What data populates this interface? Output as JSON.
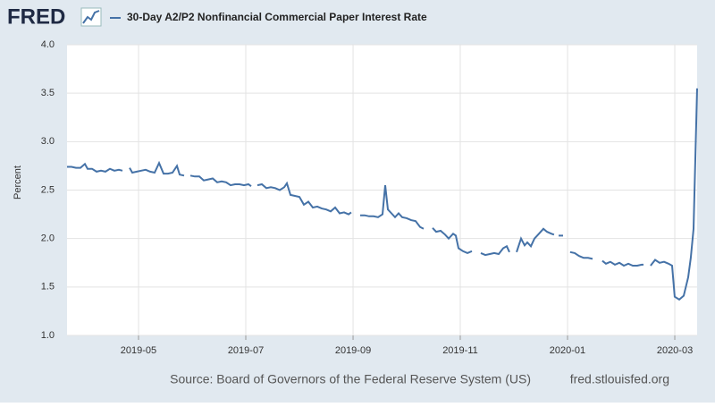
{
  "chart_data": {
    "type": "line",
    "logo": "FRED",
    "source": "Source: Board of Governors of the Federal Reserve System (US)",
    "site": "fred.stlouisfed.org",
    "ylabel": "Percent",
    "xlim": [
      2019.2222,
      2020.2014
    ],
    "xticks": [
      {
        "value": 2019.3333,
        "label": "2019-05"
      },
      {
        "value": 2019.5,
        "label": "2019-07"
      },
      {
        "value": 2019.6667,
        "label": "2019-09"
      },
      {
        "value": 2019.8333,
        "label": "2019-11"
      },
      {
        "value": 2020,
        "label": "2020-01"
      },
      {
        "value": 2020.1667,
        "label": "2020-03"
      }
    ],
    "ylim": [
      1,
      4
    ],
    "yticks": [
      {
        "value": 1,
        "label": "1.0"
      },
      1.5,
      {
        "value": 2,
        "label": "2.0"
      },
      2.5,
      {
        "value": 3,
        "label": "3.0"
      },
      3.5,
      {
        "value": 4,
        "label": "4.0"
      }
    ],
    "grid": true,
    "x": [
      2019.2222,
      2019.2291,
      2019.2361,
      2019.243,
      2019.25,
      2019.2541,
      2019.2611,
      2019.268,
      2019.275,
      2019.2819,
      2019.2889,
      2019.2958,
      2019.3028,
      2019.3083,
      null,
      2019.3194,
      2019.3236,
      2019.3305,
      2019.3375,
      2019.3444,
      2019.3514,
      2019.3583,
      2019.3653,
      2019.3722,
      2019.3792,
      2019.3861,
      2019.393,
      2019.3972,
      2019.4042,
      null,
      2019.4139,
      2019.4208,
      2019.4278,
      2019.4347,
      2019.4417,
      2019.4486,
      2019.4555,
      2019.4625,
      2019.4694,
      2019.4764,
      2019.4833,
      2019.4903,
      2019.4972,
      2019.5042,
      2019.5083,
      null,
      2019.518,
      2019.525,
      2019.5319,
      2019.5389,
      2019.5458,
      2019.5528,
      2019.5597,
      2019.5639,
      2019.5694,
      2019.5764,
      2019.5833,
      2019.5903,
      2019.5972,
      2019.6042,
      2019.6111,
      2019.618,
      2019.625,
      2019.6319,
      2019.6389,
      2019.6458,
      2019.6528,
      2019.6597,
      2019.6639,
      null,
      2019.6778,
      2019.6847,
      2019.6917,
      2019.6986,
      2019.7055,
      2019.7125,
      2019.7166,
      2019.7208,
      2019.7264,
      2019.7319,
      2019.7375,
      2019.743,
      2019.75,
      2019.7569,
      2019.7639,
      2019.7708,
      2019.7764,
      null,
      2019.7903,
      2019.7958,
      2019.8028,
      2019.8097,
      2019.8153,
      2019.8222,
      2019.8264,
      2019.8305,
      2019.8375,
      2019.8444,
      2019.8514,
      null,
      2019.8653,
      2019.8722,
      2019.8792,
      2019.8861,
      2019.893,
      2019.9,
      2019.9055,
      2019.9097,
      null,
      2019.9208,
      2019.9278,
      2019.9333,
      2019.9375,
      2019.943,
      2019.9486,
      2019.9555,
      2019.9625,
      2019.968,
      2019.975,
      2019.9791,
      null,
      2019.9861,
      2019.993,
      null,
      2020.0041,
      2020.0111,
      2020.018,
      2020.025,
      2020.0319,
      2020.0389,
      null,
      2020.0541,
      2020.0597,
      2020.0666,
      2020.0736,
      2020.0805,
      2020.0875,
      2020.0944,
      2020.1014,
      2020.1083,
      2020.1153,
      2020.118,
      null,
      2020.1291,
      2020.1361,
      2020.143,
      2020.15,
      2020.1569,
      2020.1625,
      2020.1666,
      2020.1736,
      2020.1805,
      2020.1875,
      2020.1916,
      2020.1958,
      2020.2014
    ],
    "series": [
      {
        "name": "30-Day A2/P2 Nonfinancial Commercial Paper Interest Rate",
        "color": "#4572a7",
        "values": [
          2.74,
          2.74,
          2.73,
          2.73,
          2.77,
          2.72,
          2.72,
          2.69,
          2.7,
          2.69,
          2.72,
          2.7,
          2.71,
          2.7,
          null,
          2.73,
          2.68,
          2.69,
          2.7,
          2.71,
          2.69,
          2.68,
          2.78,
          2.67,
          2.67,
          2.68,
          2.75,
          2.66,
          2.65,
          null,
          2.65,
          2.64,
          2.64,
          2.6,
          2.61,
          2.62,
          2.58,
          2.59,
          2.58,
          2.55,
          2.56,
          2.56,
          2.55,
          2.56,
          2.54,
          null,
          2.55,
          2.56,
          2.52,
          2.53,
          2.52,
          2.5,
          2.53,
          2.57,
          2.45,
          2.44,
          2.43,
          2.35,
          2.38,
          2.32,
          2.33,
          2.31,
          2.3,
          2.28,
          2.32,
          2.26,
          2.27,
          2.25,
          2.27,
          null,
          2.24,
          2.24,
          2.23,
          2.23,
          2.22,
          2.25,
          2.55,
          2.3,
          2.26,
          2.22,
          2.26,
          2.22,
          2.21,
          2.19,
          2.18,
          2.12,
          2.1,
          null,
          2.11,
          2.07,
          2.08,
          2.04,
          2.0,
          2.05,
          2.03,
          1.9,
          1.87,
          1.85,
          1.87,
          null,
          1.85,
          1.83,
          1.84,
          1.85,
          1.84,
          1.9,
          1.92,
          1.86,
          null,
          1.86,
          2.0,
          1.93,
          1.96,
          1.92,
          2.0,
          2.05,
          2.1,
          2.07,
          2.05,
          2.04,
          null,
          2.03,
          2.03,
          null,
          1.86,
          1.85,
          1.82,
          1.8,
          1.8,
          1.79,
          null,
          1.77,
          1.74,
          1.76,
          1.73,
          1.75,
          1.72,
          1.74,
          1.72,
          1.72,
          1.73,
          1.73,
          null,
          1.72,
          1.78,
          1.75,
          1.76,
          1.74,
          1.72,
          1.4,
          1.37,
          1.41,
          1.6,
          1.8,
          2.1,
          3.55
        ]
      }
    ]
  }
}
